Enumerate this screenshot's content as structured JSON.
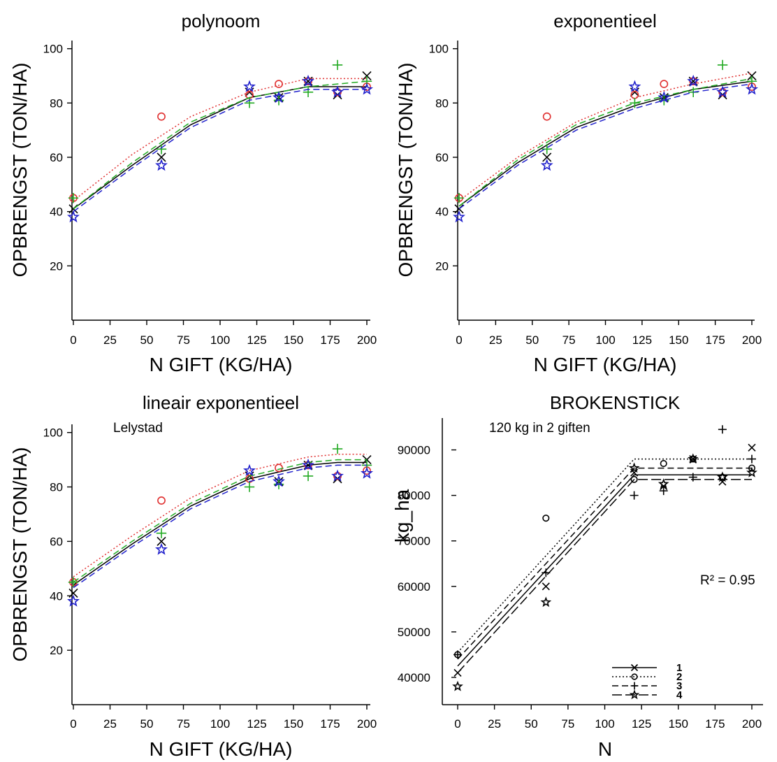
{
  "figure": {
    "panels": [
      {
        "title": "polynoom",
        "xlabel": "N GIFT (KG/HA)",
        "ylabel": "OPBRENGST (TON/HA)",
        "annotation": "",
        "x_ticks": [
          0,
          25,
          50,
          75,
          100,
          125,
          150,
          175,
          200
        ],
        "y_ticks": [
          20,
          40,
          60,
          80,
          100
        ]
      },
      {
        "title": "exponentieel",
        "xlabel": "N GIFT (KG/HA)",
        "ylabel": "OPBRENGST (TON/HA)",
        "annotation": "",
        "x_ticks": [
          0,
          25,
          50,
          75,
          100,
          125,
          150,
          175,
          200
        ],
        "y_ticks": [
          20,
          40,
          60,
          80,
          100
        ]
      },
      {
        "title": "lineair exponentieel",
        "xlabel": "N GIFT (KG/HA)",
        "ylabel": "OPBRENGST (TON/HA)",
        "annotation": "Lelystad",
        "x_ticks": [
          0,
          25,
          50,
          75,
          100,
          125,
          150,
          175,
          200
        ],
        "y_ticks": [
          20,
          40,
          60,
          80,
          100
        ]
      },
      {
        "title": "BROKENSTICK",
        "xlabel": "N",
        "ylabel": "kg_ha",
        "annotation": "120 kg in 2 giften",
        "r2_label": "R² = 0.95",
        "x_ticks": [
          0,
          25,
          50,
          75,
          100,
          125,
          150,
          175,
          200
        ],
        "y_ticks": [
          40000,
          50000,
          60000,
          70000,
          80000,
          90000
        ],
        "legend": [
          "1",
          "2",
          "3",
          "4"
        ]
      }
    ]
  },
  "chart_data": [
    {
      "type": "scatter",
      "title": "polynoom",
      "xlabel": "N GIFT (KG/HA)",
      "ylabel": "OPBRENGST (TON/HA)",
      "xlim": [
        0,
        200
      ],
      "ylim": [
        0,
        103
      ],
      "grid": false,
      "series": [
        {
          "color": "#000000",
          "marker": "x",
          "line_style": "solid",
          "x": [
            0,
            60,
            120,
            140,
            160,
            180,
            200
          ],
          "y": [
            41,
            60,
            84,
            82,
            88,
            83,
            90
          ],
          "curve": [
            [
              0,
              41
            ],
            [
              40,
              57
            ],
            [
              80,
              72
            ],
            [
              120,
              82
            ],
            [
              160,
              86
            ],
            [
              200,
              86
            ]
          ]
        },
        {
          "color": "#e03030",
          "marker": "o",
          "line_style": "dotted",
          "x": [
            0,
            60,
            120,
            140,
            160,
            180,
            200
          ],
          "y": [
            45,
            75,
            83,
            87,
            88,
            84,
            86
          ],
          "curve": [
            [
              0,
              44
            ],
            [
              40,
              61
            ],
            [
              80,
              75
            ],
            [
              120,
              84
            ],
            [
              160,
              89
            ],
            [
              200,
              89
            ]
          ]
        },
        {
          "color": "#22aa22",
          "marker": "+",
          "line_style": "dashed",
          "x": [
            0,
            60,
            120,
            140,
            160,
            180,
            200
          ],
          "y": [
            45,
            63,
            80,
            81,
            84,
            94,
            88
          ],
          "curve": [
            [
              0,
              41
            ],
            [
              40,
              58
            ],
            [
              80,
              73
            ],
            [
              120,
              82
            ],
            [
              160,
              86
            ],
            [
              200,
              88
            ]
          ]
        },
        {
          "color": "#2020cc",
          "marker": "star",
          "line_style": "dashed",
          "x": [
            0,
            60,
            120,
            140,
            160,
            180,
            200
          ],
          "y": [
            38,
            57,
            86,
            82,
            88,
            84,
            85
          ],
          "curve": [
            [
              0,
              40
            ],
            [
              40,
              56
            ],
            [
              80,
              71
            ],
            [
              120,
              81
            ],
            [
              160,
              85
            ],
            [
              200,
              85
            ]
          ]
        }
      ]
    },
    {
      "type": "scatter",
      "title": "exponentieel",
      "xlabel": "N GIFT (KG/HA)",
      "ylabel": "OPBRENGST (TON/HA)",
      "xlim": [
        0,
        200
      ],
      "ylim": [
        0,
        103
      ],
      "grid": false,
      "series": [
        {
          "color": "#000000",
          "marker": "x",
          "line_style": "solid",
          "x": [
            0,
            60,
            120,
            140,
            160,
            180,
            200
          ],
          "y": [
            41,
            60,
            84,
            82,
            88,
            83,
            90
          ],
          "curve": [
            [
              0,
              42
            ],
            [
              40,
              58
            ],
            [
              80,
              71
            ],
            [
              120,
              79
            ],
            [
              160,
              85
            ],
            [
              200,
              88
            ]
          ]
        },
        {
          "color": "#e03030",
          "marker": "o",
          "line_style": "dotted",
          "x": [
            0,
            60,
            120,
            140,
            160,
            180,
            200
          ],
          "y": [
            45,
            75,
            83,
            87,
            88,
            84,
            86
          ],
          "curve": [
            [
              0,
              44
            ],
            [
              40,
              60
            ],
            [
              80,
              73
            ],
            [
              120,
              82
            ],
            [
              160,
              87
            ],
            [
              200,
              91
            ]
          ]
        },
        {
          "color": "#22aa22",
          "marker": "+",
          "line_style": "dashed",
          "x": [
            0,
            60,
            120,
            140,
            160,
            180,
            200
          ],
          "y": [
            45,
            63,
            80,
            81,
            84,
            94,
            88
          ],
          "curve": [
            [
              0,
              42
            ],
            [
              40,
              59
            ],
            [
              80,
              72
            ],
            [
              120,
              80
            ],
            [
              160,
              85
            ],
            [
              200,
              89
            ]
          ]
        },
        {
          "color": "#2020cc",
          "marker": "star",
          "line_style": "dashed",
          "x": [
            0,
            60,
            120,
            140,
            160,
            180,
            200
          ],
          "y": [
            38,
            57,
            86,
            82,
            88,
            84,
            85
          ],
          "curve": [
            [
              0,
              41
            ],
            [
              40,
              57
            ],
            [
              80,
              70
            ],
            [
              120,
              78
            ],
            [
              160,
              84
            ],
            [
              200,
              87
            ]
          ]
        }
      ]
    },
    {
      "type": "scatter",
      "title": "lineair exponentieel",
      "xlabel": "N GIFT (KG/HA)",
      "ylabel": "OPBRENGST (TON/HA)",
      "annotation": "Lelystad",
      "xlim": [
        0,
        200
      ],
      "ylim": [
        0,
        103
      ],
      "grid": false,
      "series": [
        {
          "color": "#000000",
          "marker": "x",
          "line_style": "solid",
          "x": [
            0,
            60,
            120,
            140,
            160,
            180,
            200
          ],
          "y": [
            41,
            60,
            84,
            82,
            88,
            83,
            90
          ],
          "curve": [
            [
              0,
              44
            ],
            [
              40,
              59
            ],
            [
              80,
              73
            ],
            [
              120,
              83
            ],
            [
              160,
              88
            ],
            [
              180,
              89
            ],
            [
              200,
              89
            ]
          ]
        },
        {
          "color": "#e03030",
          "marker": "o",
          "line_style": "dotted",
          "x": [
            0,
            60,
            120,
            140,
            160,
            180,
            200
          ],
          "y": [
            45,
            75,
            83,
            87,
            88,
            84,
            86
          ],
          "curve": [
            [
              0,
              47
            ],
            [
              40,
              62
            ],
            [
              80,
              76
            ],
            [
              120,
              86
            ],
            [
              160,
              91
            ],
            [
              180,
              92
            ],
            [
              200,
              92
            ]
          ]
        },
        {
          "color": "#22aa22",
          "marker": "+",
          "line_style": "dashed",
          "x": [
            0,
            60,
            120,
            140,
            160,
            180,
            200
          ],
          "y": [
            45,
            63,
            80,
            81,
            84,
            94,
            88
          ],
          "curve": [
            [
              0,
              45
            ],
            [
              40,
              60
            ],
            [
              80,
              74
            ],
            [
              120,
              84
            ],
            [
              160,
              89
            ],
            [
              180,
              90
            ],
            [
              200,
              90
            ]
          ]
        },
        {
          "color": "#2020cc",
          "marker": "star",
          "line_style": "dashed",
          "x": [
            0,
            60,
            120,
            140,
            160,
            180,
            200
          ],
          "y": [
            38,
            57,
            86,
            82,
            88,
            84,
            85
          ],
          "curve": [
            [
              0,
              43
            ],
            [
              40,
              58
            ],
            [
              80,
              72
            ],
            [
              120,
              82
            ],
            [
              160,
              87
            ],
            [
              180,
              88
            ],
            [
              200,
              88
            ]
          ]
        }
      ]
    },
    {
      "type": "line",
      "title": "BROKENSTICK",
      "xlabel": "N",
      "ylabel": "kg_ha",
      "annotation": "120 kg in 2 giften",
      "r2": 0.95,
      "xlim": [
        0,
        200
      ],
      "ylim": [
        34000,
        97000
      ],
      "grid": false,
      "legend": {
        "position": "bottom-center",
        "entries": [
          "1",
          "2",
          "3",
          "4"
        ]
      },
      "series": [
        {
          "name": "1",
          "marker": "x",
          "line_style": "solid",
          "x": [
            0,
            60,
            120,
            140,
            160,
            180,
            200
          ],
          "y": [
            41000,
            60000,
            85000,
            82000,
            88000,
            83000,
            90500
          ],
          "breakpoint": [
            120,
            84500
          ],
          "intercept": 42500,
          "plateau": 84500
        },
        {
          "name": "2",
          "marker": "o",
          "line_style": "dotted",
          "x": [
            0,
            60,
            120,
            140,
            160,
            180,
            200
          ],
          "y": [
            45000,
            75000,
            83500,
            87000,
            88000,
            84000,
            86000
          ],
          "breakpoint": [
            120,
            88000
          ],
          "intercept": 45500,
          "plateau": 88000
        },
        {
          "name": "3",
          "marker": "+",
          "line_style": "dashed",
          "x": [
            0,
            60,
            120,
            140,
            160,
            180,
            200
          ],
          "y": [
            45000,
            63000,
            80000,
            81000,
            84000,
            94500,
            88000
          ],
          "breakpoint": [
            120,
            86000
          ],
          "intercept": 44000,
          "plateau": 86000
        },
        {
          "name": "4",
          "marker": "star",
          "line_style": "longdash",
          "x": [
            0,
            60,
            120,
            140,
            160,
            180,
            200
          ],
          "y": [
            38000,
            56500,
            86000,
            82500,
            88000,
            84000,
            85000
          ],
          "breakpoint": [
            120,
            83500
          ],
          "intercept": 41000,
          "plateau": 83500
        }
      ]
    }
  ]
}
